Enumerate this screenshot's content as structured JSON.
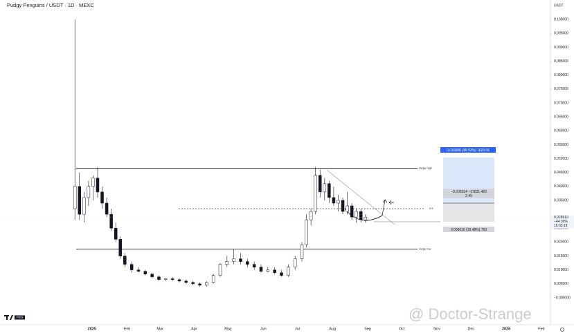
{
  "chart_data": {
    "type": "candlestick",
    "title": "Pudgy Penguins / USDT · 1D · MEXC",
    "y_axis_label": "USDT",
    "watermark": "@ Doctor-Strange",
    "logo_badge": "PRO",
    "candles": {
      "x": [
        0,
        4,
        8,
        12,
        16,
        20,
        24,
        28,
        32,
        36,
        40,
        44,
        50,
        56,
        62,
        68,
        74,
        80,
        86,
        92,
        98,
        104,
        110,
        116,
        122,
        128,
        134,
        140,
        146,
        152,
        158,
        164,
        170,
        176,
        182,
        188,
        194,
        200,
        204,
        208,
        212,
        216,
        220,
        224,
        228,
        232,
        236,
        240,
        244,
        248,
        252,
        256
      ],
      "open": [
        0.032,
        0.04,
        0.03,
        0.036,
        0.04,
        0.043,
        0.038,
        0.034,
        0.03,
        0.025,
        0.021,
        0.015,
        0.012,
        0.01,
        0.0095,
        0.0085,
        0.0075,
        0.0065,
        0.0068,
        0.0065,
        0.006,
        0.0055,
        0.005,
        0.0045,
        0.0055,
        0.008,
        0.012,
        0.013,
        0.014,
        0.013,
        0.012,
        0.011,
        0.0095,
        0.01,
        0.009,
        0.008,
        0.011,
        0.014,
        0.019,
        0.028,
        0.031,
        0.044,
        0.038,
        0.041,
        0.036,
        0.034,
        0.035,
        0.031,
        0.033,
        0.029,
        0.031,
        0.028
      ],
      "high": [
        0.1,
        0.045,
        0.038,
        0.042,
        0.044,
        0.047,
        0.04,
        0.036,
        0.032,
        0.027,
        0.022,
        0.016,
        0.013,
        0.011,
        0.01,
        0.009,
        0.008,
        0.007,
        0.0075,
        0.007,
        0.0065,
        0.006,
        0.0055,
        0.006,
        0.0085,
        0.0125,
        0.015,
        0.0175,
        0.016,
        0.014,
        0.013,
        0.012,
        0.011,
        0.011,
        0.01,
        0.012,
        0.015,
        0.02,
        0.03,
        0.032,
        0.047,
        0.046,
        0.043,
        0.042,
        0.04,
        0.037,
        0.036,
        0.038,
        0.034,
        0.032,
        0.032,
        0.03
      ],
      "low": [
        0.028,
        0.028,
        0.027,
        0.033,
        0.035,
        0.036,
        0.032,
        0.029,
        0.024,
        0.02,
        0.014,
        0.011,
        0.009,
        0.009,
        0.008,
        0.007,
        0.006,
        0.006,
        0.006,
        0.0055,
        0.005,
        0.0045,
        0.004,
        0.004,
        0.005,
        0.0075,
        0.011,
        0.012,
        0.012,
        0.011,
        0.01,
        0.009,
        0.009,
        0.0085,
        0.0075,
        0.0075,
        0.01,
        0.013,
        0.018,
        0.026,
        0.03,
        0.036,
        0.035,
        0.034,
        0.033,
        0.031,
        0.03,
        0.03,
        0.028,
        0.027,
        0.027,
        0.027
      ],
      "close": [
        0.04,
        0.03,
        0.036,
        0.04,
        0.043,
        0.038,
        0.034,
        0.03,
        0.025,
        0.021,
        0.015,
        0.012,
        0.01,
        0.0095,
        0.0085,
        0.0075,
        0.0065,
        0.0068,
        0.0065,
        0.006,
        0.0055,
        0.005,
        0.0045,
        0.0055,
        0.008,
        0.012,
        0.013,
        0.014,
        0.013,
        0.012,
        0.011,
        0.0095,
        0.01,
        0.009,
        0.008,
        0.011,
        0.014,
        0.019,
        0.028,
        0.031,
        0.044,
        0.038,
        0.041,
        0.036,
        0.034,
        0.035,
        0.031,
        0.033,
        0.029,
        0.031,
        0.028,
        0.029
      ]
    },
    "colors": {
      "up": "#ffffff",
      "down": "#131722",
      "wick": "#131722"
    },
    "xlim": [
      -66,
      419
    ],
    "xticks": [
      {
        "value": 15,
        "label": "2025"
      },
      {
        "value": 46,
        "label": "Feb"
      },
      {
        "value": 75,
        "label": "Mar"
      },
      {
        "value": 105,
        "label": "Apr"
      },
      {
        "value": 135,
        "label": "May"
      },
      {
        "value": 166,
        "label": "Jun"
      },
      {
        "value": 196,
        "label": "Jul"
      },
      {
        "value": 227,
        "label": "Aug"
      },
      {
        "value": 258,
        "label": "Sep"
      },
      {
        "value": 288,
        "label": "Oct"
      },
      {
        "value": 319,
        "label": "Nov"
      },
      {
        "value": 349,
        "label": "Dec"
      },
      {
        "value": 380,
        "label": "2026"
      },
      {
        "value": 411,
        "label": "Feb"
      }
    ],
    "ylim": [
      -0.0097,
      0.107
    ],
    "yticks": [
      {
        "value": 0.1,
        "label": "0.100000"
      },
      {
        "value": 0.095,
        "label": "0.095000"
      },
      {
        "value": 0.09,
        "label": "0.090000"
      },
      {
        "value": 0.085,
        "label": "0.085000"
      },
      {
        "value": 0.08,
        "label": "0.080000"
      },
      {
        "value": 0.075,
        "label": "0.075000"
      },
      {
        "value": 0.07,
        "label": "0.070000"
      },
      {
        "value": 0.065,
        "label": "0.065000"
      },
      {
        "value": 0.06,
        "label": "0.060000"
      },
      {
        "value": 0.055,
        "label": "0.055000"
      },
      {
        "value": 0.05,
        "label": "0.050000"
      },
      {
        "value": 0.045,
        "label": "0.045000"
      },
      {
        "value": 0.04,
        "label": "0.040000"
      },
      {
        "value": 0.035,
        "label": "0.035000"
      },
      {
        "value": 0.025,
        "label": "0.025000"
      },
      {
        "value": 0.02,
        "label": "0.020000"
      },
      {
        "value": 0.015,
        "label": "0.015000"
      },
      {
        "value": 0.01,
        "label": "0.010000"
      },
      {
        "value": 0.005,
        "label": "0.005000"
      },
      {
        "value": 0,
        "label": "−0.000000"
      }
    ],
    "levels": [
      {
        "label": "range high",
        "value": 0.0465
      },
      {
        "label": "range low",
        "value": 0.0175
      },
      {
        "label": "0.5",
        "value": 0.032
      }
    ],
    "last_price": {
      "value": 0.028919,
      "label": "0.028919",
      "change": "−44.39%",
      "countdown": "15:03:18"
    },
    "measure": {
      "top": "0.016686 (46.52%) 1623.06",
      "middle": "−0.005014 −37821.483",
      "ratio": "2.49",
      "bottom": "0.006610 (19.48%) 750"
    }
  }
}
